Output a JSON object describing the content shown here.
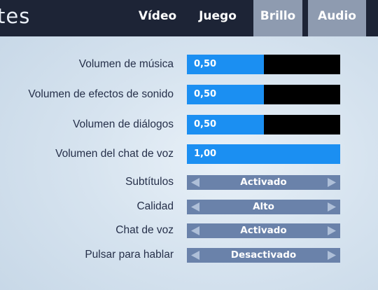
{
  "header": {
    "title": "tes",
    "tabs": [
      {
        "label": "Vídeo"
      },
      {
        "label": "Juego"
      },
      {
        "label": "Brillo"
      },
      {
        "label": "Audio",
        "active": true
      }
    ]
  },
  "sliders": [
    {
      "label": "Volumen de música",
      "value": "0,50",
      "level": 0.5
    },
    {
      "label": "Volumen de efectos de sonido",
      "value": "0,50",
      "level": 0.5
    },
    {
      "label": "Volumen de diálogos",
      "value": "0,50",
      "level": 0.5
    },
    {
      "label": "Volumen del chat de voz",
      "value": "1,00",
      "level": 1.0
    }
  ],
  "selectors": [
    {
      "label": "Subtítulos",
      "value": "Activado"
    },
    {
      "label": "Calidad",
      "value": "Alto"
    },
    {
      "label": "Chat de voz",
      "value": "Activado"
    },
    {
      "label": "Pulsar para hablar",
      "value": "Desactivado"
    }
  ],
  "colors": {
    "slider_fill": "#1b8ff2",
    "slider_track": "#000000",
    "selector_bg": "#6a82aa",
    "topbar": "#1d2436",
    "active_tab": "#8e9bb0"
  }
}
